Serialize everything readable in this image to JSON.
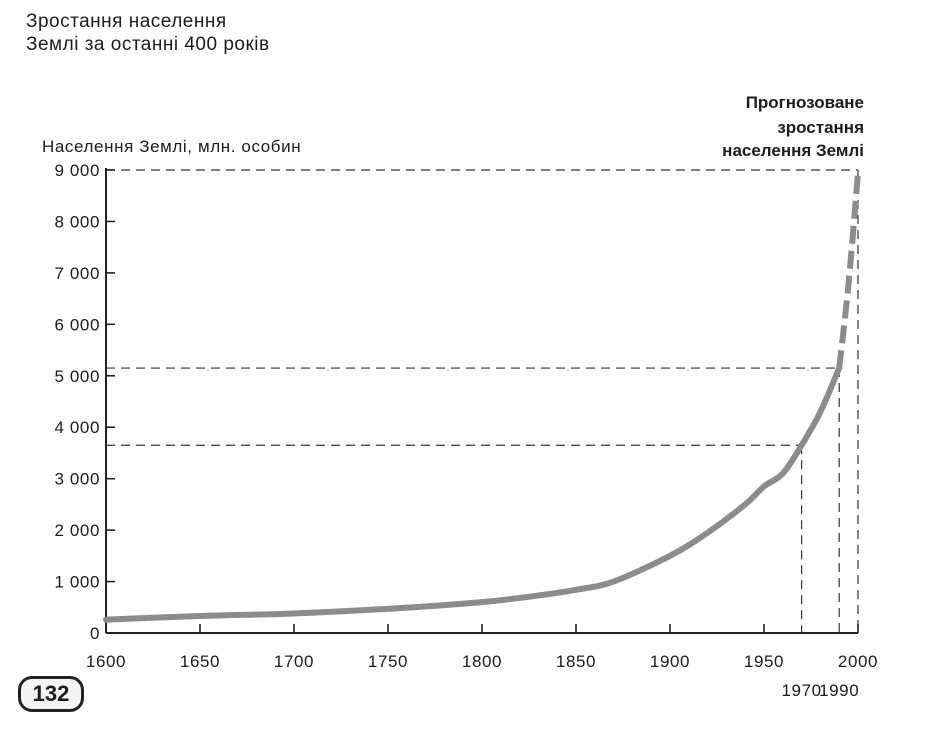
{
  "page": {
    "title_lines": [
      "Зростання населення",
      "Землі за останні 400 років"
    ],
    "page_number": "132"
  },
  "chart_data": {
    "type": "line",
    "title": "Зростання населення Землі за останні 400 років",
    "ylabel": "Населення Землі, млн. особин",
    "xlabel": "",
    "xlim": [
      1600,
      2000
    ],
    "ylim": [
      0,
      9000
    ],
    "x_ticks": [
      1600,
      1650,
      1700,
      1750,
      1800,
      1850,
      1900,
      1950,
      2000
    ],
    "x_tick_labels": [
      "1600",
      "1650",
      "1700",
      "1750",
      "1800",
      "1850",
      "1900",
      "1950",
      "2000"
    ],
    "y_ticks": [
      0,
      1000,
      2000,
      3000,
      4000,
      5000,
      6000,
      7000,
      8000,
      9000
    ],
    "y_tick_labels": [
      "0",
      "1 000",
      "2 000",
      "3 000",
      "4 000",
      "5 000",
      "6 000",
      "7 000",
      "8 000",
      "9 000"
    ],
    "extra_x_labels": [
      "1970",
      "1990"
    ],
    "series": [
      {
        "style": "solid",
        "color": "#8c8c8c",
        "x": [
          1600,
          1650,
          1700,
          1750,
          1800,
          1830,
          1850,
          1870,
          1900,
          1920,
          1940,
          1950,
          1960,
          1970,
          1980,
          1990
        ],
        "y": [
          260,
          330,
          380,
          470,
          600,
          730,
          840,
          1000,
          1500,
          1950,
          2500,
          2850,
          3100,
          3650,
          4300,
          5150
        ]
      },
      {
        "name": "Прогнозоване зростання населення Землі",
        "style": "dashed",
        "color": "#8c8c8c",
        "x": [
          1990,
          1995,
          2000
        ],
        "y": [
          5150,
          6800,
          8950
        ]
      }
    ],
    "reference_lines": [
      {
        "x": 1970,
        "y": 3650
      },
      {
        "x": 1990,
        "y": 5150
      },
      {
        "x": 2000,
        "y": 9000
      }
    ],
    "annotations": [
      {
        "text_lines": [
          "Прогнозоване",
          "зростання",
          "населення Землі"
        ],
        "position": "top-right"
      }
    ],
    "grid": false,
    "legend": "none"
  }
}
